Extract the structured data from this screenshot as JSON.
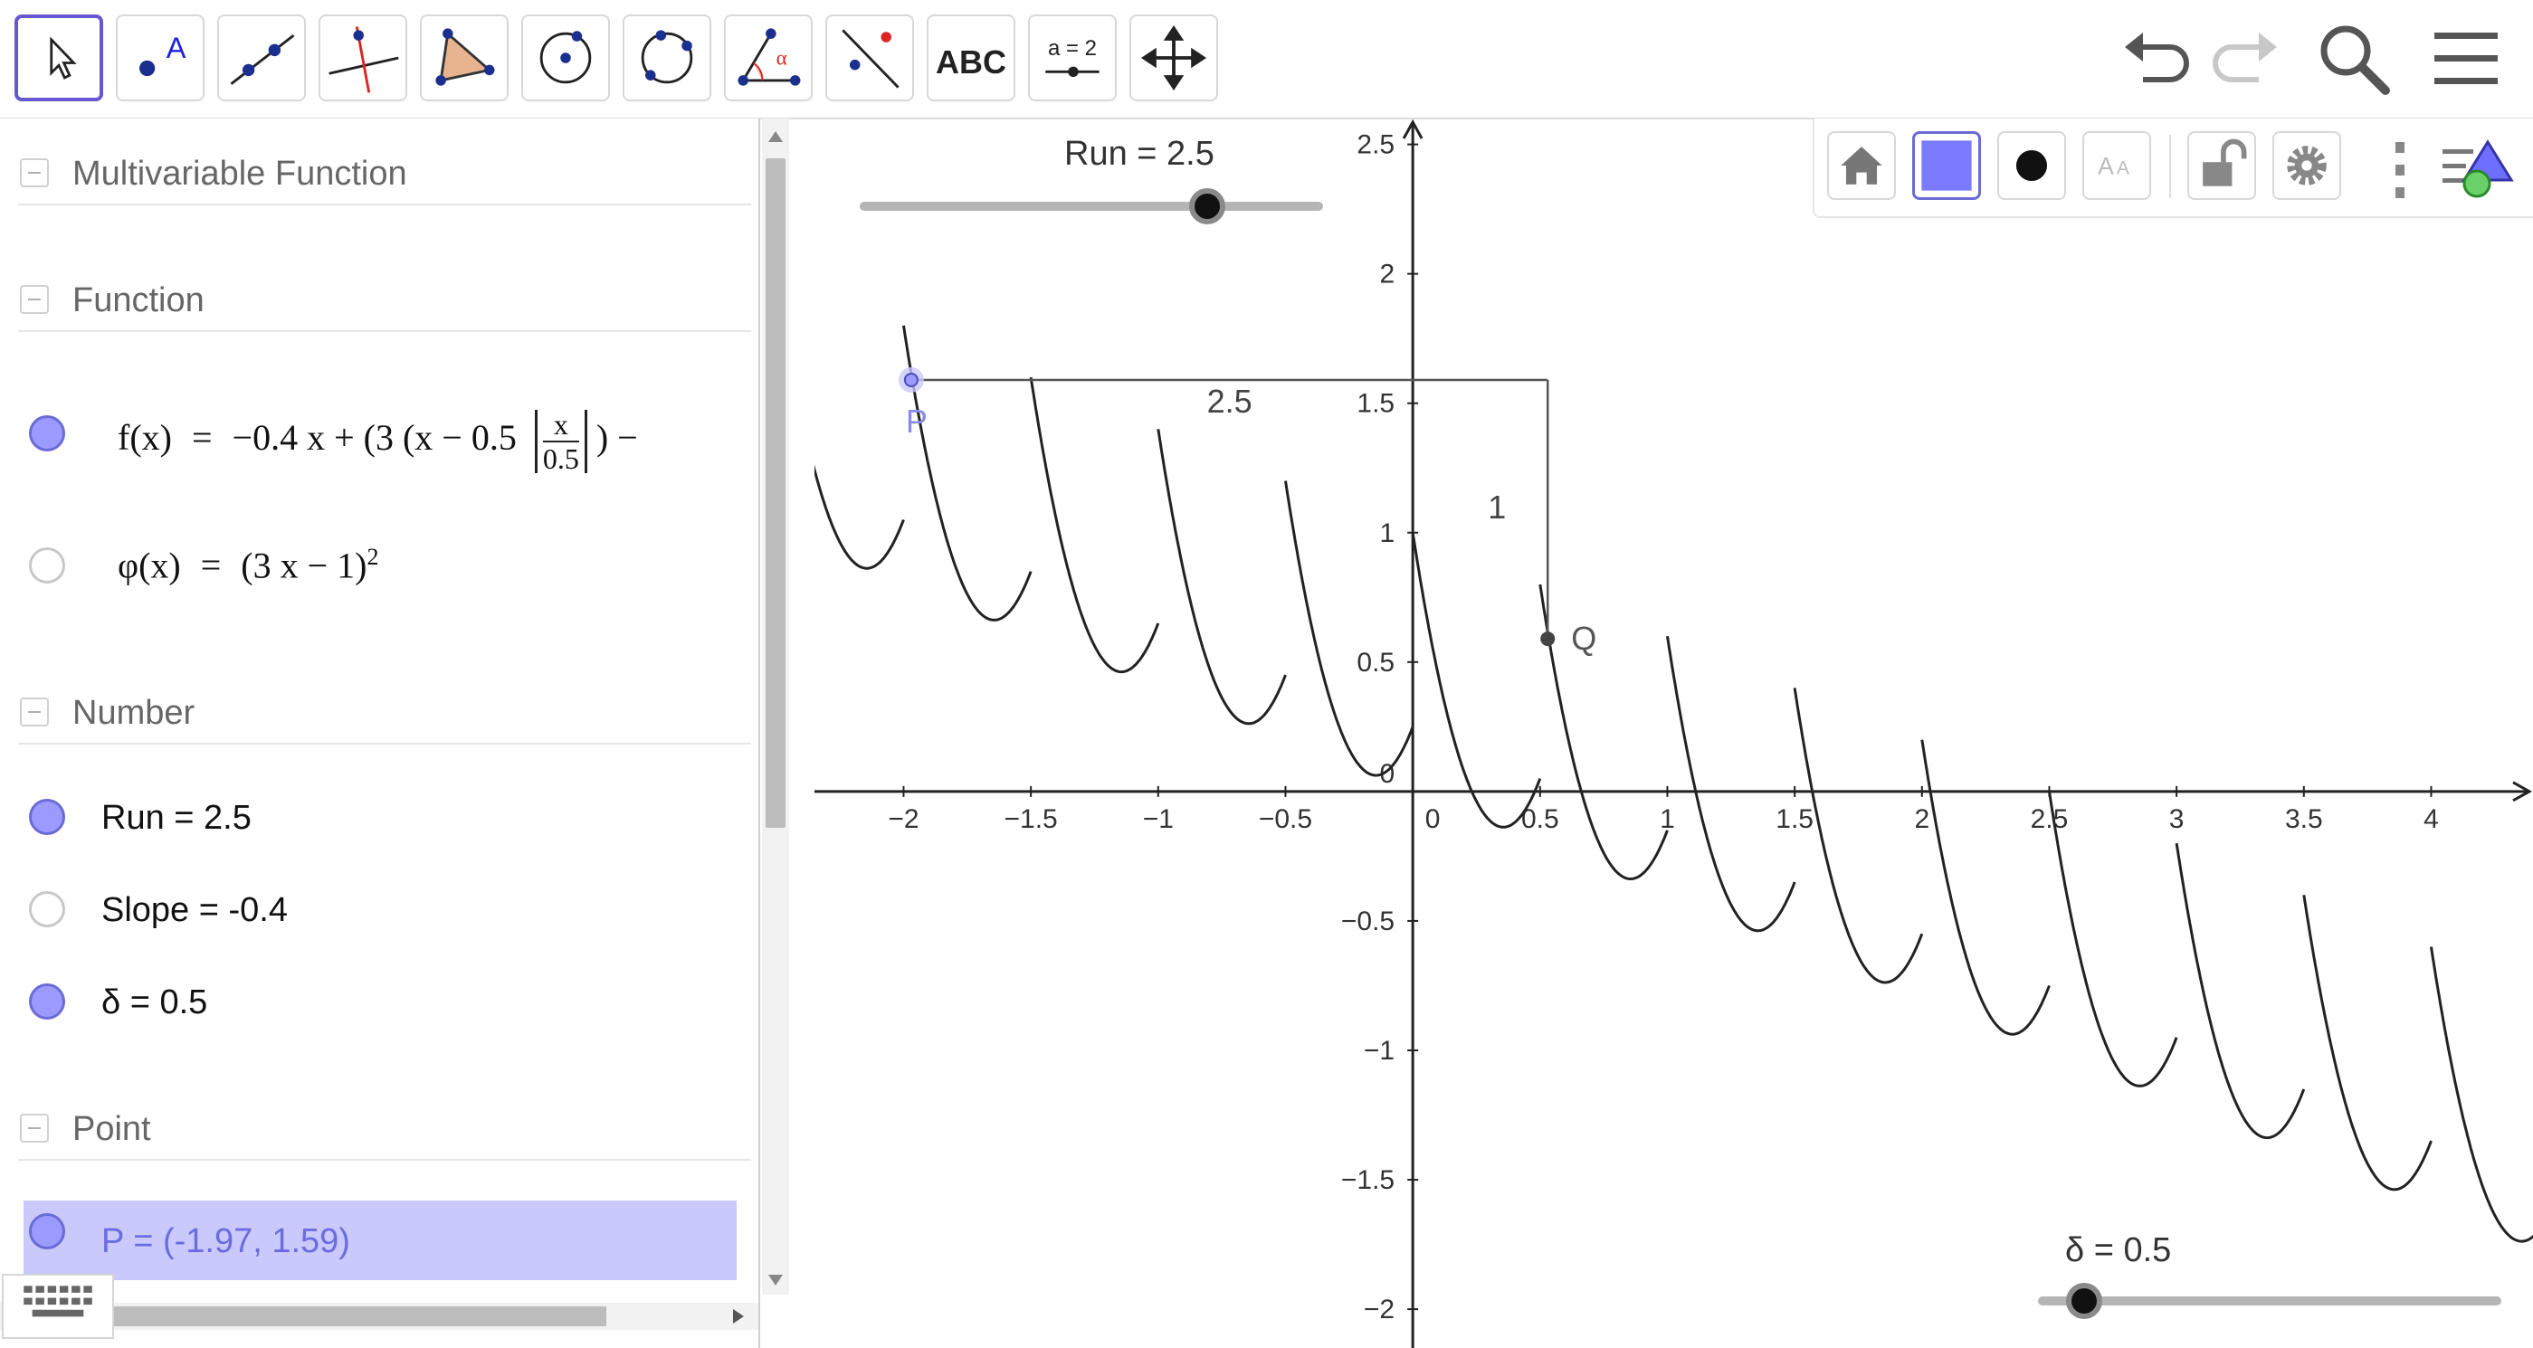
{
  "toolbar": {
    "tools": [
      {
        "name": "move-tool",
        "icon": "arrow-cursor-icon"
      },
      {
        "name": "point-tool",
        "icon": "point-icon",
        "letter": "A"
      },
      {
        "name": "line-tool",
        "icon": "line-icon"
      },
      {
        "name": "perpendicular-tool",
        "icon": "perpendicular-line-icon"
      },
      {
        "name": "polygon-tool",
        "icon": "polygon-icon"
      },
      {
        "name": "circle-tool",
        "icon": "circle-center-icon"
      },
      {
        "name": "circle-three-points-tool",
        "icon": "circle-three-points-icon"
      },
      {
        "name": "angle-tool",
        "icon": "angle-icon",
        "letter": "α"
      },
      {
        "name": "reflect-tool",
        "icon": "reflect-icon"
      },
      {
        "name": "text-tool",
        "icon": "text-icon",
        "text": "ABC"
      },
      {
        "name": "slider-tool",
        "icon": "slider-icon",
        "text": "a = 2"
      },
      {
        "name": "move-graphics-tool",
        "icon": "move-graphics-icon"
      }
    ],
    "right": [
      "undo-icon",
      "redo-icon",
      "search-icon",
      "menu-icon"
    ]
  },
  "algebra": {
    "groups": [
      {
        "label": "Multivariable Function"
      },
      {
        "label": "Function"
      },
      {
        "label": "Number"
      },
      {
        "label": "Point"
      }
    ],
    "functions": {
      "f_prefix": "f(x)",
      "f_eq": "=",
      "f_body": "−0.4 x + (3 (x − 0.5",
      "f_frac_num": "x",
      "f_frac_den": "0.5",
      "f_tail": ") −",
      "phi_prefix": "φ(x)",
      "phi_eq": "=",
      "phi_body": "(3 x − 1)",
      "phi_exp": "2"
    },
    "numbers": [
      {
        "text": "Run = 2.5",
        "visible": true
      },
      {
        "text": "Slope = -0.4",
        "visible": false
      },
      {
        "text": "δ = 0.5",
        "visible": true
      }
    ],
    "point": {
      "text": "P = (-1.97, 1.59)",
      "visible": true
    }
  },
  "graphics": {
    "style_bar": [
      "home-icon",
      "color-square",
      "point-style-dot",
      "label-style-icon",
      "lock-icon",
      "settings-gear-icon",
      "more-vertical-icon",
      "toggle-style-bar-icon"
    ],
    "sliders": [
      {
        "label": "Run = 2.5",
        "value": 2.5,
        "min": -5,
        "max": 5
      },
      {
        "label": "δ = 0.5",
        "value": 0.5,
        "min": 0,
        "max": 5
      }
    ],
    "labels": {
      "run_value": "2.5",
      "rise_value": "1",
      "point_p": "P",
      "point_q": "Q"
    }
  },
  "chart_data": {
    "type": "line",
    "x_ticks": [
      "-2",
      "-1.5",
      "-1",
      "-0.5",
      "0",
      "0.5",
      "1",
      "1.5",
      "2",
      "2.5",
      "3",
      "3.5",
      "4"
    ],
    "y_ticks": [
      "-2",
      "-1.5",
      "-1",
      "-0.5",
      "0",
      "0.5",
      "1",
      "1.5",
      "2",
      "2.5"
    ],
    "xlim": [
      -2.35,
      4.4
    ],
    "ylim": [
      -2.15,
      2.6
    ],
    "series": [
      {
        "name": "f",
        "slope": -0.4,
        "delta": 0.5,
        "period": 0.5
      }
    ],
    "points": [
      {
        "name": "P",
        "x": -1.97,
        "y": 1.59
      },
      {
        "name": "Q",
        "x": 0.53,
        "y": 0.59
      }
    ],
    "grid": false
  }
}
